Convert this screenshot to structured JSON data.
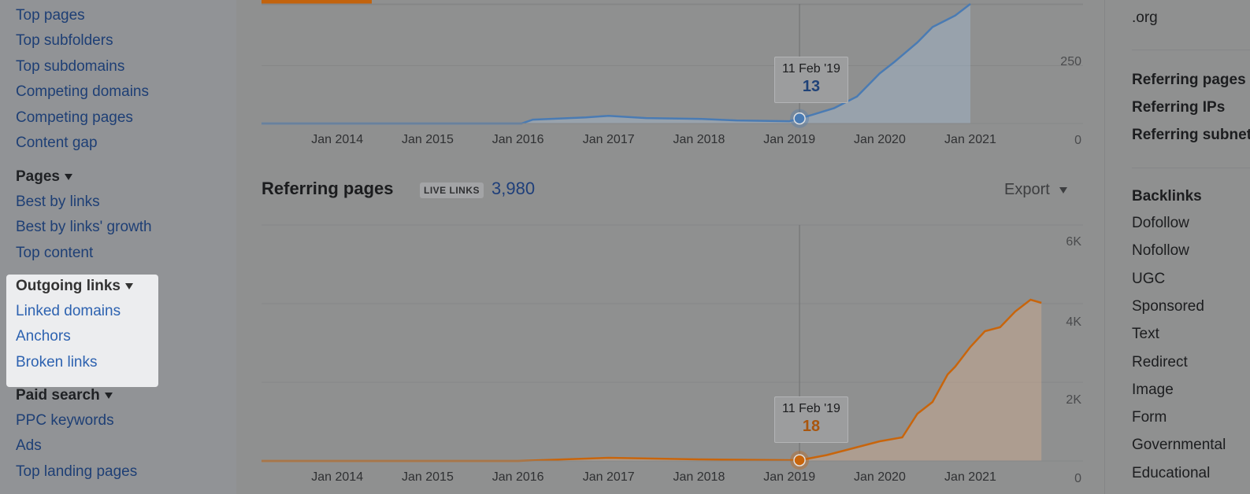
{
  "sidebar": {
    "links_top": [
      "Top pages",
      "Top subfolders",
      "Top subdomains",
      "Competing domains",
      "Competing pages",
      "Content gap"
    ],
    "pages_head": "Pages",
    "pages_links": [
      "Best by links",
      "Best by links' growth",
      "Top content"
    ],
    "outgoing_head": "Outgoing links",
    "outgoing_links": [
      "Linked domains",
      "Anchors",
      "Broken links"
    ],
    "paid_head": "Paid search",
    "paid_links": [
      "PPC keywords",
      "Ads",
      "Top landing pages"
    ]
  },
  "right_panel": {
    "org": ".org",
    "ref_items": [
      "Referring pages",
      "Referring IPs",
      "Referring subnets"
    ],
    "backlinks_head": "Backlinks",
    "backlink_types": [
      "Dofollow",
      "Nofollow",
      "UGC",
      "Sponsored",
      "Text",
      "Redirect",
      "Image",
      "Form",
      "Governmental",
      "Educational"
    ]
  },
  "referring_pages": {
    "title": "Referring pages",
    "badge": "LIVE LINKS",
    "count": "3,980",
    "export": "Export"
  },
  "tooltips": {
    "top": {
      "date": "11 Feb '19",
      "value": "13"
    },
    "bottom": {
      "date": "11 Feb '19",
      "value": "18"
    }
  },
  "colors": {
    "blue_series": "#4a7bb3",
    "orange_series": "#c8650c",
    "link": "#1e3f75"
  },
  "chart_data": [
    {
      "type": "area",
      "title": "",
      "x_ticks": [
        "Jan 2014",
        "Jan 2015",
        "Jan 2016",
        "Jan 2017",
        "Jan 2018",
        "Jan 2019",
        "Jan 2020",
        "Jan 2021"
      ],
      "y_ticks": [
        "250",
        "0"
      ],
      "ylim": [
        0,
        310
      ],
      "x": [
        "2013-03-01",
        "2016-01-15",
        "2016-03-01",
        "2016-10-01",
        "2017-01-01",
        "2017-06-01",
        "2018-01-01",
        "2018-06-01",
        "2019-01-01",
        "2019-02-11",
        "2019-04-01",
        "2019-07-01",
        "2019-10-01",
        "2020-01-01",
        "2020-03-01",
        "2020-06-01",
        "2020-08-01",
        "2020-10-01",
        "2020-11-01",
        "2021-01-01"
      ],
      "series": [
        {
          "values": [
            0,
            0,
            10,
            16,
            20,
            14,
            12,
            8,
            6,
            13,
            22,
            40,
            70,
            130,
            160,
            210,
            250,
            270,
            280,
            310
          ]
        }
      ],
      "grid": true
    },
    {
      "type": "area",
      "title": "",
      "x_ticks": [
        "Jan 2014",
        "Jan 2015",
        "Jan 2016",
        "Jan 2017",
        "Jan 2018",
        "Jan 2019",
        "Jan 2020",
        "Jan 2021"
      ],
      "y_ticks": [
        "6K",
        "4K",
        "2K",
        "0"
      ],
      "ylim": [
        0,
        6000
      ],
      "x": [
        "2013-03-01",
        "2016-01-01",
        "2017-01-01",
        "2018-01-01",
        "2019-02-11",
        "2019-06-01",
        "2019-09-01",
        "2020-01-01",
        "2020-04-01",
        "2020-06-01",
        "2020-08-01",
        "2020-10-01",
        "2020-11-01",
        "2021-01-01",
        "2021-03-01",
        "2021-05-01",
        "2021-07-01",
        "2021-09-01",
        "2021-10-15"
      ],
      "series": [
        {
          "values": [
            0,
            0,
            80,
            40,
            18,
            150,
            300,
            500,
            600,
            1200,
            1500,
            2200,
            2400,
            2900,
            3300,
            3400,
            3800,
            4100,
            4020
          ]
        }
      ],
      "grid": true
    }
  ]
}
